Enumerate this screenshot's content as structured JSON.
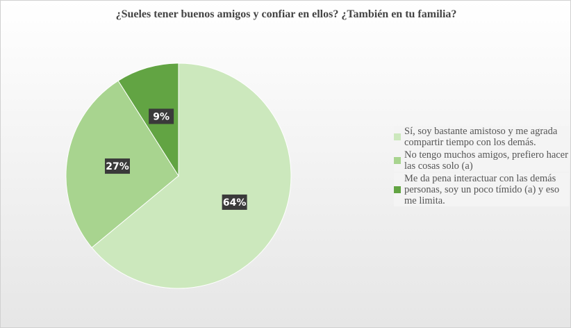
{
  "chart_data": {
    "type": "pie",
    "title": "¿Sueles tener buenos amigos y confiar en ellos? ¿También en tu familia?",
    "categories": [
      "Sí, soy bastante amistoso y me agrada compartir tiempo con los demás.",
      "No tengo muchos amigos, prefiero hacer las cosas solo (a)",
      "Me da pena interactuar con las demás personas, soy un poco tímido (a) y eso me limita."
    ],
    "values": [
      64,
      27,
      9
    ],
    "value_labels": [
      "64%",
      "27%",
      "9%"
    ],
    "colors": [
      "#cce8bd",
      "#a8d48f",
      "#62a443"
    ],
    "legend": "right"
  }
}
